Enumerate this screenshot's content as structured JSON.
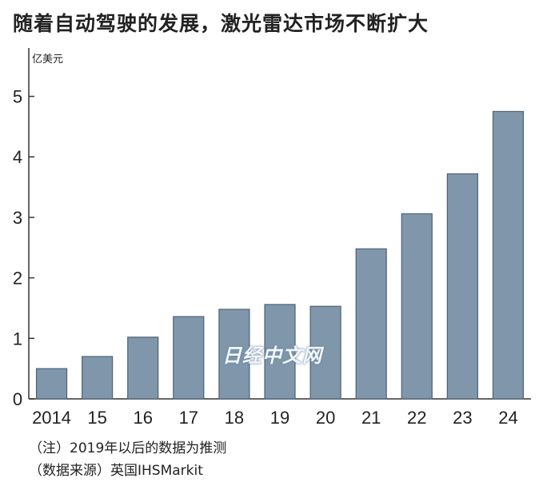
{
  "title": "随着自动驾驶的发展，激光雷达市场不断扩大",
  "unit": "亿美元",
  "notes": {
    "note1": "（注）2019年以后的数据为推测",
    "note2": "（数据来源）英国IHSMarkit"
  },
  "watermark": "日经中文网",
  "colors": {
    "bar": "#7f96ab",
    "bar_stroke": "#4f6274",
    "axis": "#333333"
  },
  "chart_data": {
    "type": "bar",
    "title": "随着自动驾驶的发展，激光雷达市场不断扩大",
    "ylabel": "亿美元",
    "xlabel": "",
    "categories": [
      "2014",
      "15",
      "16",
      "17",
      "18",
      "19",
      "20",
      "21",
      "22",
      "23",
      "24"
    ],
    "values": [
      0.5,
      0.7,
      1.02,
      1.36,
      1.48,
      1.56,
      1.53,
      2.48,
      3.06,
      3.72,
      4.75
    ],
    "ylim": [
      0,
      5.8
    ],
    "yticks": [
      0,
      1,
      2,
      3,
      4,
      5
    ],
    "grid": false,
    "legend": "none"
  }
}
